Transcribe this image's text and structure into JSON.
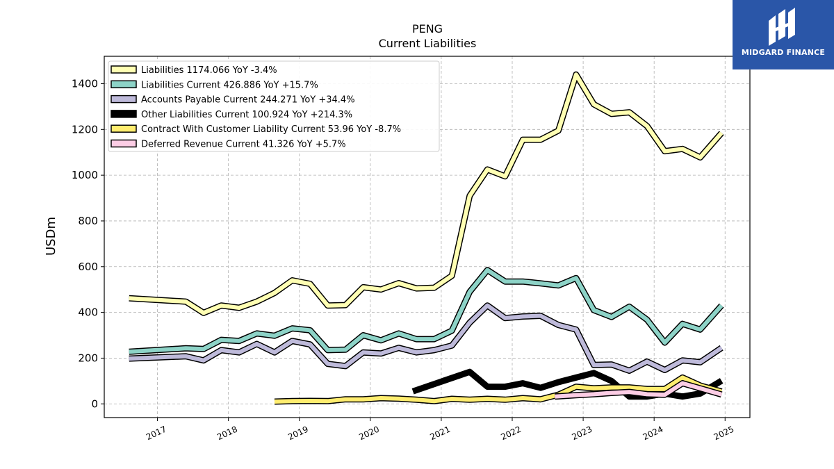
{
  "logo": {
    "text": "MIDGARD FINANCE",
    "background": "#2a56a8"
  },
  "chart_data": {
    "type": "line",
    "title": "PENG",
    "subtitle": "Current  Liabilities",
    "ylabel": "USDm",
    "ylim": [
      -60,
      1520
    ],
    "xlim": [
      2016.25,
      2025.35
    ],
    "yticks": [
      0,
      200,
      400,
      600,
      800,
      1000,
      1200,
      1400
    ],
    "xticks": [
      2017,
      2018,
      2019,
      2020,
      2021,
      2022,
      2023,
      2024,
      2025
    ],
    "grid": true,
    "legend_position": "top-left",
    "series": [
      {
        "name": "Liabilities  1174.066 YoY -3.4%",
        "color": "#ffffb3",
        "width": 6,
        "x": [
          2016.6,
          2017.4,
          2017.65,
          2017.9,
          2018.15,
          2018.4,
          2018.65,
          2018.9,
          2019.15,
          2019.4,
          2019.65,
          2019.9,
          2020.15,
          2020.4,
          2020.65,
          2020.9,
          2021.15,
          2021.4,
          2021.65,
          2021.9,
          2022.15,
          2022.4,
          2022.65,
          2022.9,
          2023.15,
          2023.4,
          2023.65,
          2023.9,
          2024.15,
          2024.4,
          2024.65,
          2024.95
        ],
        "y": [
          462,
          447,
          398,
          430,
          420,
          447,
          485,
          540,
          525,
          430,
          432,
          510,
          500,
          528,
          505,
          508,
          560,
          910,
          1025,
          995,
          1155,
          1155,
          1195,
          1440,
          1310,
          1268,
          1275,
          1215,
          1105,
          1115,
          1078,
          1185
        ]
      },
      {
        "name": "Liabilities Current  426.886 YoY +15.7%",
        "color": "#8dd3c7",
        "width": 6,
        "x": [
          2016.6,
          2017.4,
          2017.65,
          2017.9,
          2018.15,
          2018.4,
          2018.65,
          2018.9,
          2019.15,
          2019.4,
          2019.65,
          2019.9,
          2020.15,
          2020.4,
          2020.65,
          2020.9,
          2021.15,
          2021.4,
          2021.65,
          2021.9,
          2022.15,
          2022.4,
          2022.65,
          2022.9,
          2023.15,
          2023.4,
          2023.65,
          2023.9,
          2024.15,
          2024.4,
          2024.65,
          2024.95
        ],
        "y": [
          228,
          243,
          240,
          280,
          275,
          308,
          298,
          330,
          322,
          235,
          237,
          300,
          278,
          308,
          283,
          283,
          320,
          490,
          585,
          535,
          535,
          527,
          518,
          550,
          410,
          380,
          425,
          368,
          268,
          350,
          325,
          430
        ]
      },
      {
        "name": "Accounts Payable Current  244.271 YoY +34.4%",
        "color": "#bebada",
        "width": 6,
        "x": [
          2016.6,
          2017.4,
          2017.65,
          2017.9,
          2018.15,
          2018.4,
          2018.65,
          2018.9,
          2019.15,
          2019.4,
          2019.65,
          2019.9,
          2020.15,
          2020.4,
          2020.65,
          2020.9,
          2021.15,
          2021.4,
          2021.65,
          2021.9,
          2022.15,
          2022.4,
          2022.65,
          2022.9,
          2023.15,
          2023.4,
          2023.65,
          2023.9,
          2024.15,
          2024.4,
          2024.65,
          2024.95
        ],
        "y": [
          198,
          208,
          190,
          235,
          225,
          262,
          225,
          275,
          260,
          175,
          165,
          225,
          220,
          245,
          225,
          235,
          255,
          355,
          430,
          375,
          382,
          385,
          345,
          325,
          170,
          172,
          145,
          185,
          148,
          190,
          182,
          245
        ]
      },
      {
        "name": "Other Liabilities Current  100.924 YoY +214.3%",
        "color": "#000000",
        "width": 9,
        "x": [
          2020.6,
          2021.4,
          2021.65,
          2021.9,
          2022.15,
          2022.4,
          2022.65,
          2022.9,
          2023.15,
          2023.4,
          2023.65,
          2023.9,
          2024.15,
          2024.4,
          2024.65,
          2024.95
        ],
        "y": [
          55,
          140,
          75,
          75,
          90,
          70,
          95,
          115,
          135,
          100,
          32,
          32,
          45,
          32,
          45,
          101
        ]
      },
      {
        "name": "Contract With Customer Liability Current  53.96 YoY -8.7%",
        "color": "#ffed6f",
        "width": 6,
        "x": [
          2018.65,
          2018.9,
          2019.15,
          2019.4,
          2019.65,
          2019.9,
          2020.15,
          2020.4,
          2020.65,
          2020.9,
          2021.15,
          2021.4,
          2021.65,
          2021.9,
          2022.15,
          2022.4,
          2022.65,
          2022.9,
          2023.15,
          2023.4,
          2023.65,
          2023.9,
          2024.15,
          2024.4,
          2024.65,
          2024.95
        ],
        "y": [
          10,
          12,
          13,
          12,
          20,
          20,
          25,
          23,
          18,
          12,
          22,
          18,
          22,
          18,
          25,
          20,
          40,
          75,
          68,
          72,
          72,
          65,
          65,
          115,
          80,
          54
        ]
      },
      {
        "name": "Deferred Revenue Current  41.326 YoY +5.7%",
        "color": "#fccde5",
        "width": 6,
        "x": [
          2022.6,
          2022.9,
          2023.15,
          2023.4,
          2023.65,
          2023.9,
          2024.15,
          2024.4,
          2024.65,
          2024.95
        ],
        "y": [
          32,
          38,
          42,
          48,
          52,
          42,
          40,
          90,
          68,
          41
        ]
      }
    ]
  }
}
